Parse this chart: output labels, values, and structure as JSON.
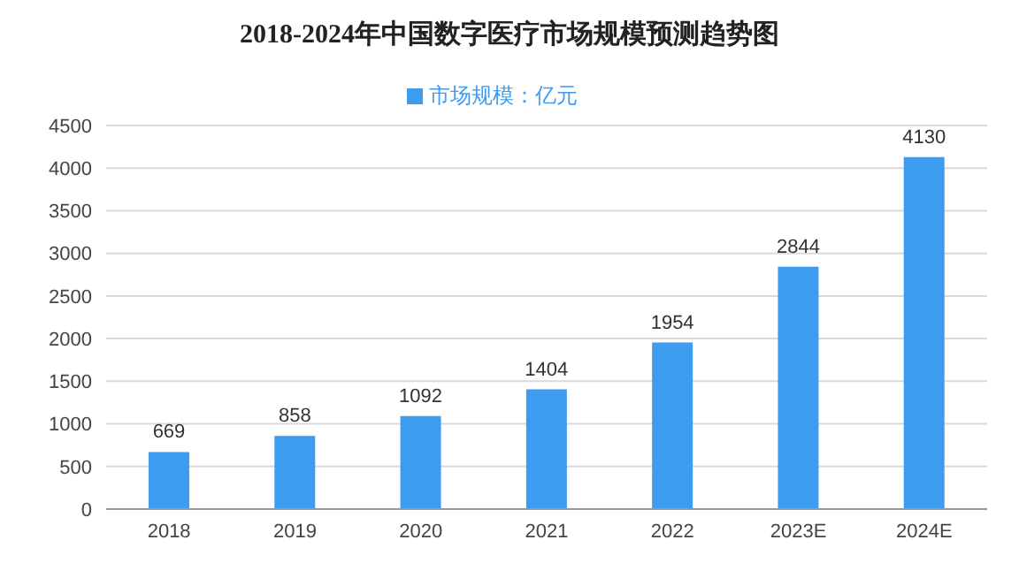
{
  "chart_data": {
    "type": "bar",
    "title": "2018-2024年中国数字医疗市场规模预测趋势图",
    "categories": [
      "2018",
      "2019",
      "2020",
      "2021",
      "2022",
      "2023E",
      "2024E"
    ],
    "series": [
      {
        "name": "市场规模：亿元",
        "color": "#3d9bf0",
        "values": [
          669,
          858,
          1092,
          1404,
          1954,
          2844,
          4130
        ]
      }
    ],
    "ylim": [
      0,
      4500
    ],
    "yticks": [
      0,
      500,
      1000,
      1500,
      2000,
      2500,
      3000,
      3500,
      4000,
      4500
    ],
    "grid": "y",
    "legend": "top",
    "data_labels": true
  }
}
